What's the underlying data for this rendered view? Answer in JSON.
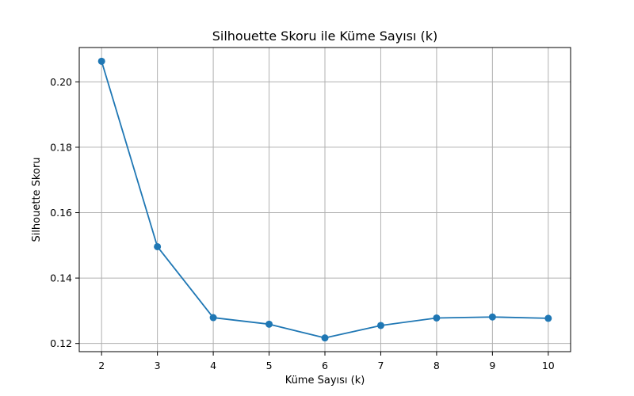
{
  "chart_data": {
    "type": "line",
    "title": "Silhouette Skoru ile Küme Sayısı (k)",
    "xlabel": "Küme Sayısı (k)",
    "ylabel": "Silhouette Skoru",
    "x": [
      2,
      3,
      4,
      5,
      6,
      7,
      8,
      9,
      10
    ],
    "series": [
      {
        "values": [
          0.2063,
          0.1496,
          0.1279,
          0.1259,
          0.1217,
          0.1255,
          0.1278,
          0.1281,
          0.1277
        ],
        "color": "#1f77b4",
        "marker": "circle"
      }
    ],
    "xlim": [
      1.6,
      10.4
    ],
    "ylim": [
      0.1175,
      0.2105
    ],
    "xticks": [
      "2",
      "3",
      "4",
      "5",
      "6",
      "7",
      "8",
      "9",
      "10"
    ],
    "yticks": [
      "0.12",
      "0.14",
      "0.16",
      "0.18",
      "0.20"
    ],
    "grid": true,
    "gridColor": "#b0b0b0"
  }
}
